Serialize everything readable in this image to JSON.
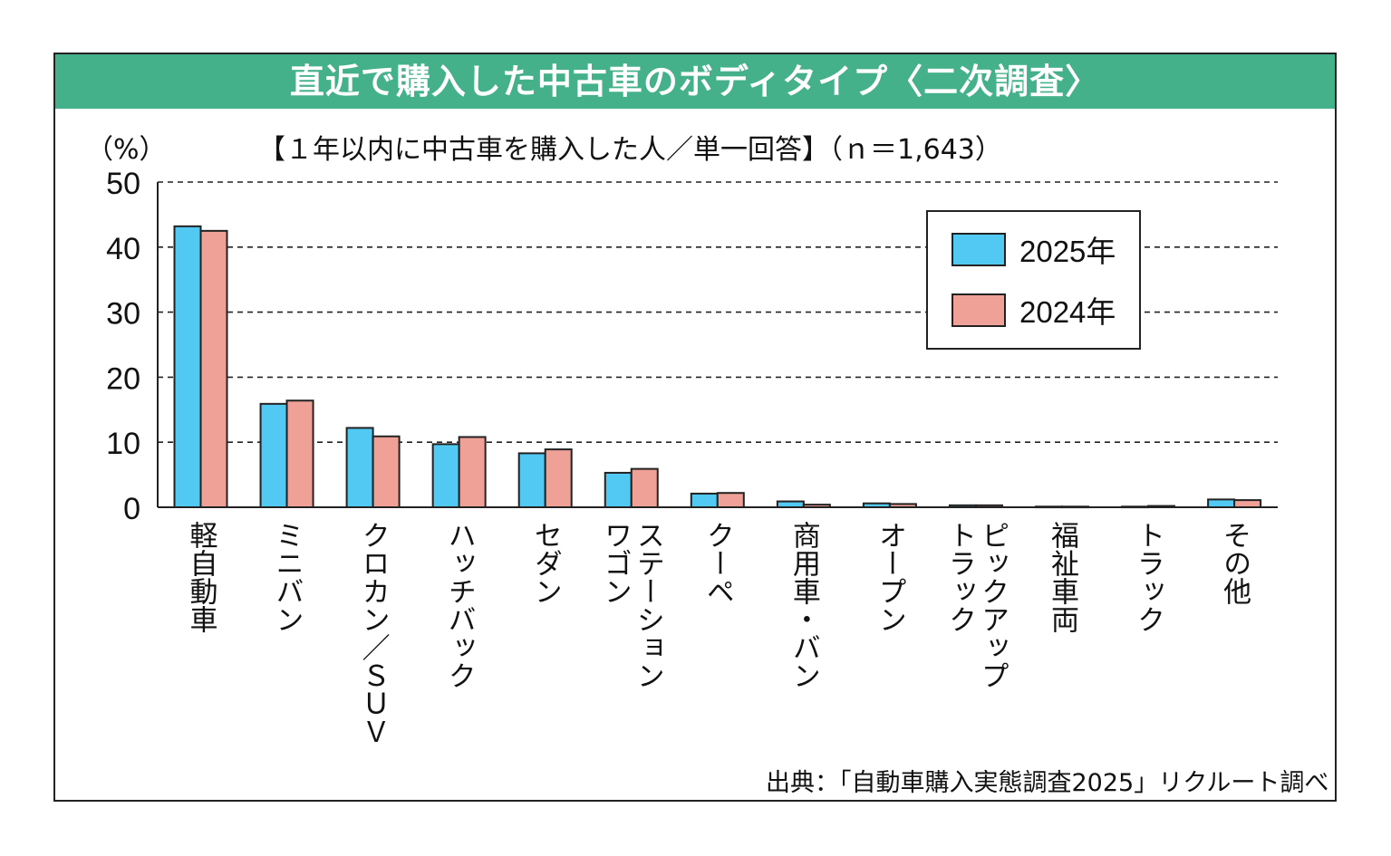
{
  "header": {
    "title": "直近で購入した中古車のボディタイプ〈二次調査〉"
  },
  "chart_data": {
    "type": "bar",
    "title": "直近で購入した中古車のボディタイプ〈二次調査〉",
    "subtitle": "【１年以内に中古車を購入した人／単一回答】（ｎ＝1,643）",
    "ylabel": "（%）",
    "xlabel": "",
    "ylim": [
      0,
      50
    ],
    "yticks": [
      0,
      10,
      20,
      30,
      40,
      50
    ],
    "grid": true,
    "legend": "top-right",
    "categories": [
      "軽自動車",
      "ミニバン",
      "クロカン／SUV",
      "ハッチバック",
      "セダン",
      "ステーションワゴン",
      "クーペ",
      "商用車・バン",
      "オープン",
      "ピックアップトラック",
      "福祉車両",
      "トラック",
      "その他"
    ],
    "category_display": [
      "軽自動車",
      "ミニバン",
      "クロカン／ＳＵＶ",
      "ハッチバック",
      "セダン",
      "ステーション\nワゴン",
      "クーペ",
      "商用車・バン",
      "オープン",
      "ピックアップ\nトラック",
      "福祉車両",
      "トラック",
      "その他"
    ],
    "series": [
      {
        "name": "2025年",
        "color": "#52c9f3",
        "values": [
          43.2,
          15.9,
          12.2,
          9.7,
          8.3,
          5.3,
          2.1,
          0.9,
          0.6,
          0.3,
          0.1,
          0.1,
          1.2
        ]
      },
      {
        "name": "2024年",
        "color": "#f0a197",
        "values": [
          42.5,
          16.4,
          10.9,
          10.8,
          8.9,
          5.9,
          2.2,
          0.4,
          0.5,
          0.3,
          0.1,
          0.2,
          1.1
        ]
      }
    ],
    "source": "出典：「自動車購入実態調査2025」リクルート調べ"
  }
}
